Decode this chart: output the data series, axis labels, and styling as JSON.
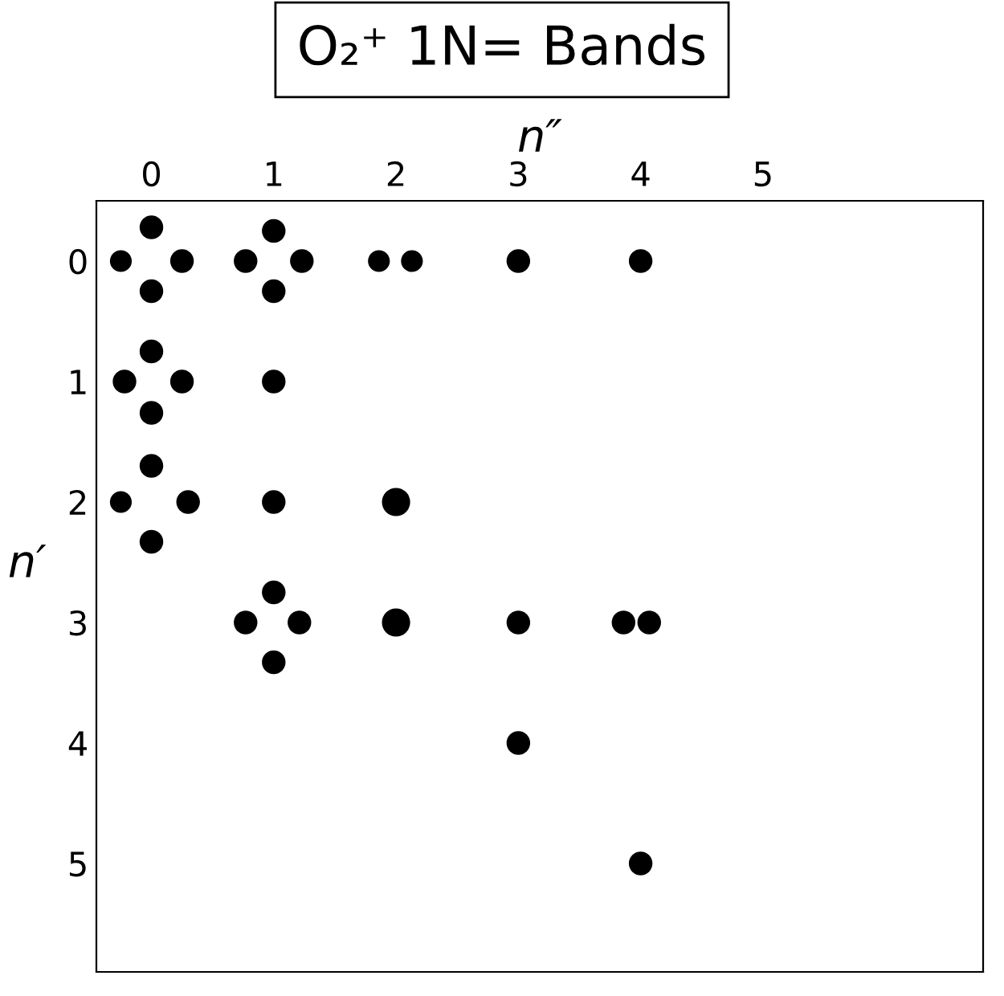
{
  "chart_data": {
    "type": "bubble",
    "title": "O₂⁺ 1N= Bands",
    "xlabel": "n″",
    "ylabel": "n′",
    "x": [
      -0.25,
      0,
      0,
      0.25,
      0.77,
      1,
      1.23,
      1,
      1.86,
      2.13,
      3,
      4,
      0,
      -0.22,
      0.25,
      0,
      1,
      0,
      -0.25,
      0.3,
      0,
      1,
      2,
      1,
      0.77,
      1.21,
      1,
      2,
      3,
      3.86,
      4.07,
      3,
      4
    ],
    "values": [
      0,
      -0.28,
      0.25,
      0,
      0,
      -0.25,
      0,
      0.25,
      0,
      0,
      0,
      0,
      0.75,
      1,
      1,
      1.26,
      1,
      1.7,
      2,
      2,
      2.33,
      2,
      2,
      2.75,
      3,
      3,
      3.33,
      3,
      3,
      3,
      3,
      4,
      5
    ],
    "sizes": [
      0.6,
      0.7,
      0.7,
      0.7,
      0.7,
      0.7,
      0.7,
      0.7,
      0.6,
      0.6,
      0.7,
      0.7,
      0.7,
      0.7,
      0.7,
      0.7,
      0.7,
      0.7,
      0.6,
      0.7,
      0.7,
      0.7,
      1,
      0.7,
      0.7,
      0.7,
      0.7,
      1,
      0.7,
      0.7,
      0.7,
      0.7,
      0.7
    ],
    "color": "#000000",
    "xlim": [
      -0.45,
      6.8
    ],
    "ylim": [
      5.9,
      -0.5
    ],
    "xticks": [
      0,
      1,
      2,
      3,
      4,
      5
    ],
    "yticks": [
      0,
      1,
      2,
      3,
      4,
      5
    ],
    "grid": false,
    "marker": "circle"
  }
}
